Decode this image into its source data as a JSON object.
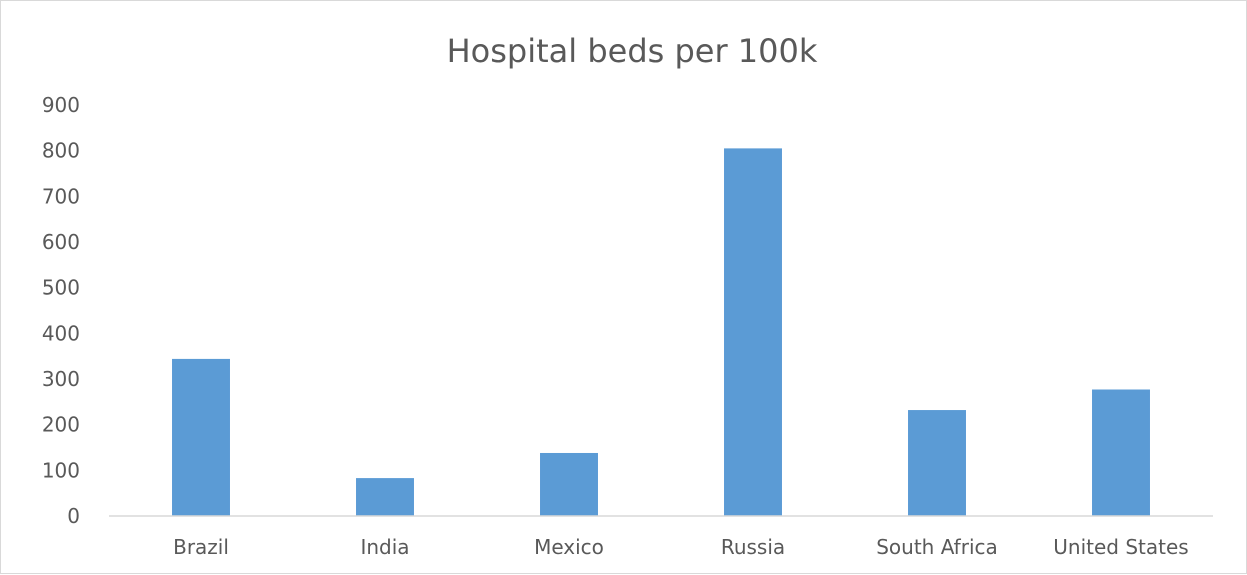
{
  "chart_data": {
    "type": "bar",
    "title": "Hospital beds per 100k",
    "categories": [
      "Brazil",
      "India",
      "Mexico",
      "Russia",
      "South Africa",
      "United States"
    ],
    "values": [
      344,
      83,
      138,
      805,
      232,
      277
    ],
    "ylim": [
      0,
      900
    ],
    "yticks": [
      "0",
      "100",
      "200",
      "300",
      "400",
      "500",
      "600",
      "700",
      "800",
      "900"
    ],
    "xlabel": "",
    "ylabel": "",
    "grid": false,
    "legend": "none",
    "bar_color": "#5b9bd5"
  }
}
